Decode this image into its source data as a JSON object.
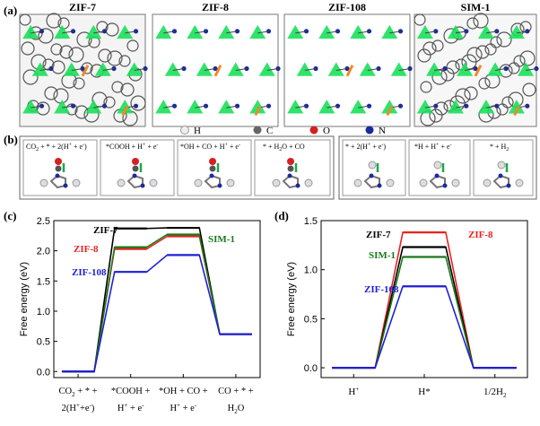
{
  "panel_labels": {
    "a": "(a)",
    "b": "(b)",
    "c": "(c)",
    "d": "(d)"
  },
  "structures": [
    "ZIF-7",
    "ZIF-8",
    "ZIF-108",
    "SIM-1"
  ],
  "atom_legend": [
    "H",
    "C",
    "O",
    "N"
  ],
  "colors": {
    "zif7": "#000000",
    "zif8": "#e8231f",
    "zif108": "#1f1fd6",
    "sim1": "#1a7a1a",
    "zn_tetra": "#19e05a",
    "arrow": "#f08a24",
    "n_atom": "#1b2a9c"
  },
  "co2_steps": [
    {
      "label_parts": [
        "CO",
        "2",
        " + * + 2(H",
        "+",
        " + e",
        "-",
        ")"
      ]
    },
    {
      "label_parts": [
        "*COOH + H",
        "+",
        " + e",
        "-",
        "",
        "",
        ""
      ]
    },
    {
      "label_parts": [
        "*OH + CO + H",
        "+",
        " + e",
        "-",
        "",
        "",
        ""
      ]
    },
    {
      "label_parts": [
        "* + H",
        "2",
        "O + CO",
        "",
        "",
        "",
        ""
      ]
    }
  ],
  "her_steps": [
    {
      "label_parts": [
        "* + 2(H",
        "+",
        " + e",
        "-",
        ")"
      ]
    },
    {
      "label_parts": [
        "*H + H",
        "+",
        " + e",
        "-",
        ""
      ]
    },
    {
      "label_parts": [
        "* + H",
        "2",
        "",
        "",
        ""
      ]
    }
  ],
  "chart_data": [
    {
      "id": "c",
      "type": "line",
      "step_profile": true,
      "ylabel": "Free energy (eV)",
      "ylim": [
        -0.1,
        2.5
      ],
      "yticks": [
        "0.0",
        "0.5",
        "1.0",
        "1.5",
        "2.0",
        "2.5"
      ],
      "xticklabels": [
        {
          "line1": "CO",
          "sub1": "2",
          "rest1": " + * +",
          "line2": "2(H",
          "sup2": "+",
          "mid2": "+e",
          "sup2b": "-",
          "end2": ")"
        },
        {
          "line1": "*COOH +",
          "sub1": "",
          "rest1": "",
          "line2": "H",
          "sup2": "+",
          "mid2": " + e",
          "sup2b": "-",
          "end2": ""
        },
        {
          "line1": "*OH + CO +",
          "sub1": "",
          "rest1": "",
          "line2": "H",
          "sup2": "+",
          "mid2": " + e",
          "sup2b": "-",
          "end2": ""
        },
        {
          "line1": "CO + * +",
          "sub1": "",
          "rest1": "",
          "line2": "H",
          "sup2": "",
          "mid2": "",
          "sup2b": "",
          "end2": "",
          "sub2": "2",
          "end2b": "O"
        }
      ],
      "series": [
        {
          "name": "ZIF-7",
          "color": "#000000",
          "values": [
            0.0,
            2.37,
            2.38,
            0.62
          ]
        },
        {
          "name": "ZIF-8",
          "color": "#e8231f",
          "values": [
            0.0,
            2.03,
            2.24,
            0.62
          ]
        },
        {
          "name": "SIM-1",
          "color": "#1a7a1a",
          "values": [
            0.0,
            2.06,
            2.27,
            0.62
          ]
        },
        {
          "name": "ZIF-108",
          "color": "#1f1fd6",
          "values": [
            0.0,
            1.65,
            1.93,
            0.62
          ]
        }
      ]
    },
    {
      "id": "d",
      "type": "line",
      "step_profile": true,
      "ylabel": "Free energy (eV)",
      "ylim": [
        -0.1,
        1.5
      ],
      "yticks": [
        "0.0",
        "0.5",
        "1.0",
        "1.5"
      ],
      "xticklabels": [
        {
          "main": "H",
          "sup": "+",
          "sub": "",
          "tail": ""
        },
        {
          "main": "H*",
          "sup": "",
          "sub": "",
          "tail": ""
        },
        {
          "main": "1/2H",
          "sup": "",
          "sub": "2",
          "tail": ""
        }
      ],
      "series": [
        {
          "name": "ZIF-8",
          "color": "#e8231f",
          "values": [
            0.0,
            1.38,
            0.0
          ]
        },
        {
          "name": "ZIF-7",
          "color": "#000000",
          "values": [
            0.0,
            1.23,
            0.0
          ]
        },
        {
          "name": "SIM-1",
          "color": "#1a7a1a",
          "values": [
            0.0,
            1.13,
            0.0
          ]
        },
        {
          "name": "ZIF-108",
          "color": "#1f1fd6",
          "values": [
            0.0,
            0.83,
            0.0
          ]
        }
      ]
    }
  ]
}
